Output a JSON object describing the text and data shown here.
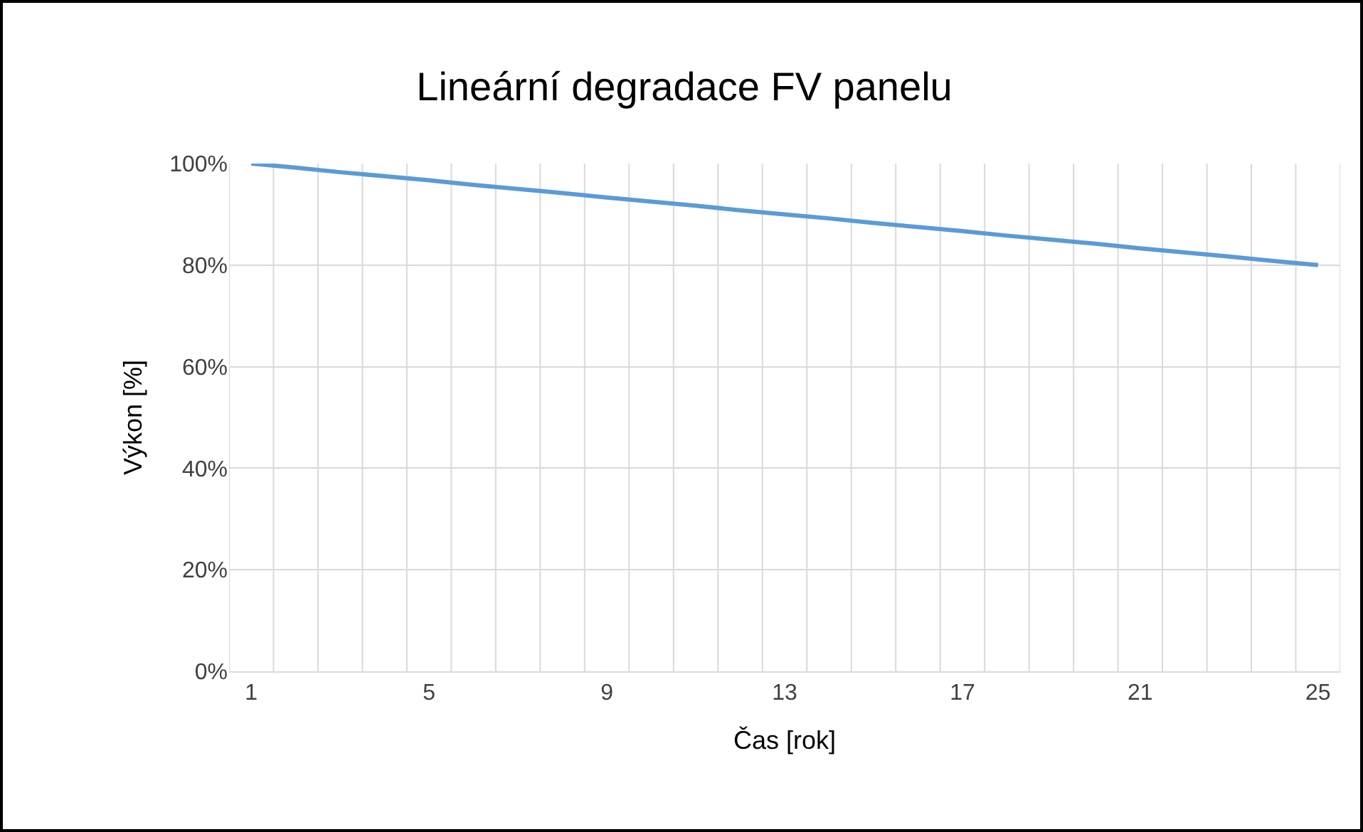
{
  "chart_data": {
    "type": "line",
    "title": "Lineární degradace FV panelu",
    "xlabel": "Čas [rok]",
    "ylabel": "Výkon [%]",
    "categories": [
      "1",
      null,
      null,
      null,
      "5",
      null,
      null,
      null,
      "9",
      null,
      null,
      null,
      "13",
      null,
      null,
      null,
      "17",
      null,
      null,
      null,
      "21",
      null,
      null,
      null,
      "25"
    ],
    "series": [
      {
        "color": "#5b9bd5",
        "values": [
          100,
          99.2,
          98.3,
          97.5,
          96.7,
          95.8,
          95,
          94.2,
          93.3,
          92.5,
          91.7,
          90.8,
          90,
          89.2,
          88.3,
          87.5,
          86.7,
          85.8,
          85,
          84.2,
          83.3,
          82.5,
          81.7,
          80.8,
          80
        ]
      }
    ],
    "ylim": [
      0,
      100
    ],
    "yticks": [
      {
        "value": 0,
        "label": "0%"
      },
      {
        "value": 20,
        "label": "20%"
      },
      {
        "value": 40,
        "label": "40%"
      },
      {
        "value": 60,
        "label": "60%"
      },
      {
        "value": 80,
        "label": "80%"
      },
      {
        "value": 100,
        "label": "100%"
      }
    ],
    "grid": true,
    "marker": "none",
    "line_style": "solid"
  }
}
